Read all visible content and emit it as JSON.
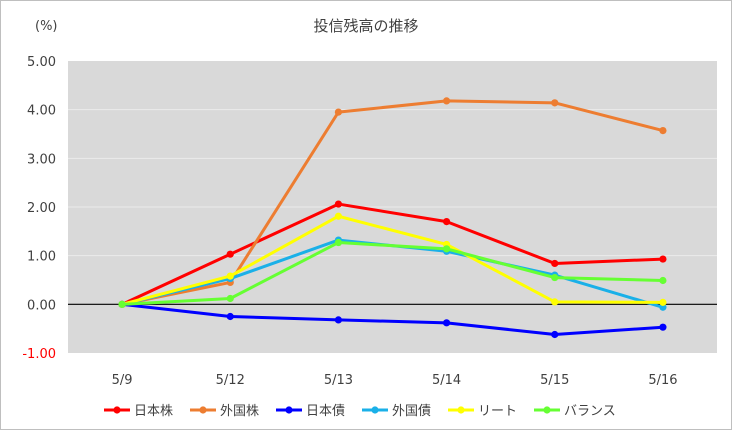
{
  "chart_data": {
    "type": "line",
    "title": "投信残高の推移",
    "unit_label": "(%)",
    "categories": [
      "5/9",
      "5/12",
      "5/13",
      "5/14",
      "5/15",
      "5/16"
    ],
    "y_ticks": [
      "5.00",
      "4.00",
      "3.00",
      "2.00",
      "1.00",
      "0.00",
      "-1.00"
    ],
    "ylim": [
      -1,
      5
    ],
    "grid": true,
    "legend_position": "bottom",
    "plot_background": "#d9d9d9",
    "negative_tick_color": "#ff0000",
    "series": [
      {
        "name": "日本株",
        "color": "#ff0000",
        "values": [
          0.0,
          1.03,
          2.06,
          1.7,
          0.84,
          0.93
        ]
      },
      {
        "name": "外国株",
        "color": "#ed7d31",
        "values": [
          0.0,
          0.45,
          3.95,
          4.18,
          4.14,
          3.57
        ]
      },
      {
        "name": "日本債",
        "color": "#0000ff",
        "values": [
          0.0,
          -0.25,
          -0.32,
          -0.38,
          -0.62,
          -0.47
        ]
      },
      {
        "name": "外国債",
        "color": "#1ab0e8",
        "values": [
          0.0,
          0.53,
          1.32,
          1.09,
          0.6,
          -0.06
        ]
      },
      {
        "name": "リート",
        "color": "#ffff00",
        "values": [
          0.0,
          0.58,
          1.81,
          1.23,
          0.05,
          0.04
        ]
      },
      {
        "name": "バランス",
        "color": "#66ff33",
        "values": [
          0.0,
          0.12,
          1.27,
          1.14,
          0.55,
          0.49
        ]
      }
    ]
  }
}
